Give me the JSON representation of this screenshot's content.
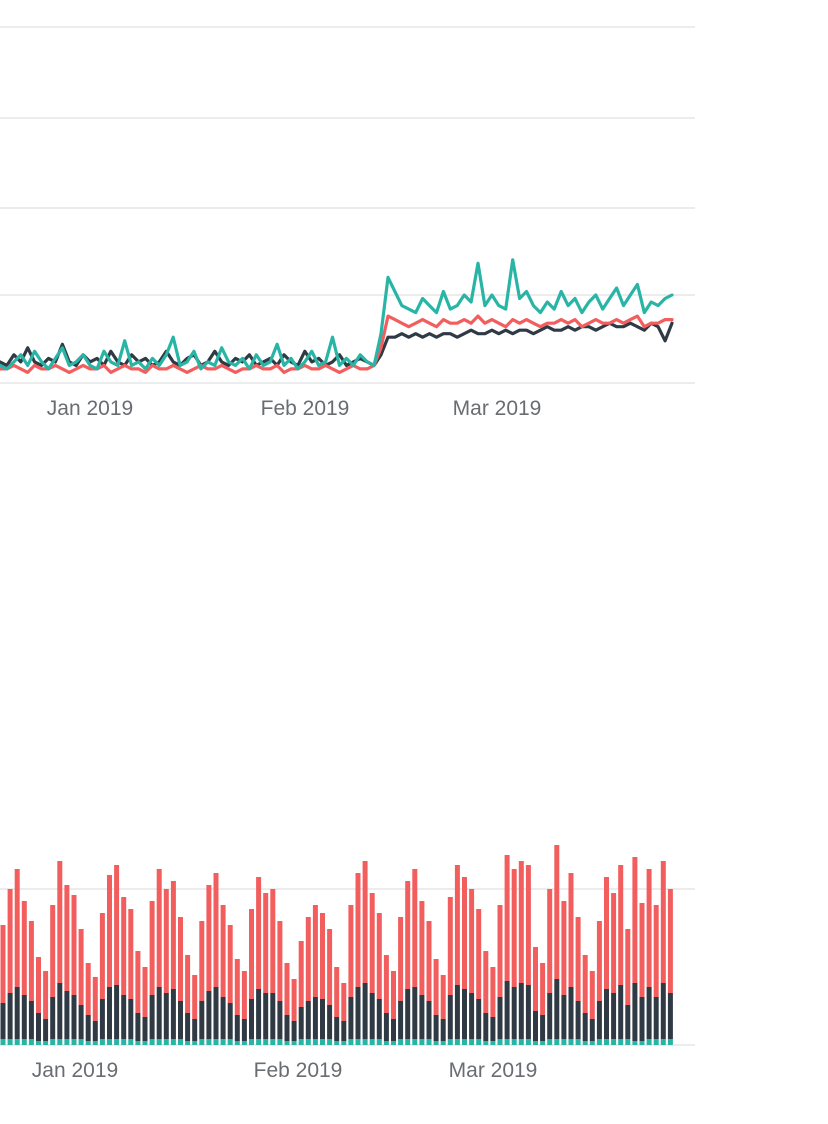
{
  "colors": {
    "teal": "#29b5a5",
    "red": "#f25e5e",
    "navy": "#2f3a45",
    "gridline": "#ececec",
    "axis_label": "#696d71",
    "background": "#ffffff"
  },
  "chart_data": [
    {
      "type": "line",
      "title": "",
      "xlabel": "",
      "ylabel": "",
      "x_tick_labels": [
        "Jan 2019",
        "Feb 2019",
        "Mar 2019"
      ],
      "x_unit": "day",
      "ylim": [
        0,
        100
      ],
      "grid": true,
      "legend": "none",
      "series": [
        {
          "name": "navy-series",
          "color": "#2f3a45",
          "values": [
            6,
            5,
            8,
            6,
            10,
            6,
            5,
            7,
            6,
            11,
            6,
            5,
            8,
            6,
            7,
            5,
            9,
            6,
            5,
            8,
            6,
            7,
            5,
            6,
            9,
            6,
            5,
            7,
            8,
            5,
            6,
            9,
            6,
            5,
            7,
            6,
            8,
            5,
            6,
            7,
            5,
            8,
            6,
            5,
            9,
            6,
            7,
            5,
            6,
            8,
            5,
            6,
            7,
            6,
            5,
            8,
            13,
            13,
            14,
            13,
            14,
            13,
            14,
            13,
            14,
            14,
            13,
            14,
            15,
            14,
            14,
            15,
            14,
            15,
            14,
            15,
            15,
            14,
            15,
            16,
            15,
            15,
            16,
            15,
            16,
            16,
            15,
            16,
            17,
            16,
            16,
            17,
            16,
            15,
            17,
            16,
            12,
            17
          ]
        },
        {
          "name": "red-series",
          "color": "#f25e5e",
          "values": [
            4,
            4,
            5,
            4,
            3,
            5,
            4,
            4,
            5,
            4,
            3,
            4,
            5,
            4,
            4,
            5,
            3,
            4,
            5,
            4,
            4,
            3,
            5,
            4,
            4,
            5,
            4,
            3,
            4,
            5,
            4,
            4,
            5,
            4,
            3,
            4,
            4,
            5,
            4,
            4,
            5,
            3,
            4,
            4,
            5,
            4,
            4,
            5,
            4,
            3,
            4,
            5,
            4,
            4,
            5,
            10,
            19,
            18,
            17,
            16,
            17,
            18,
            17,
            16,
            18,
            17,
            17,
            18,
            17,
            19,
            17,
            18,
            17,
            16,
            18,
            17,
            18,
            17,
            16,
            17,
            17,
            18,
            17,
            18,
            16,
            17,
            18,
            17,
            17,
            18,
            17,
            18,
            19,
            16,
            17,
            17,
            18,
            18
          ]
        },
        {
          "name": "teal-series",
          "color": "#29b5a5",
          "values": [
            5,
            4,
            6,
            8,
            5,
            9,
            6,
            4,
            7,
            10,
            5,
            6,
            8,
            5,
            4,
            9,
            6,
            5,
            12,
            5,
            6,
            4,
            7,
            5,
            8,
            13,
            5,
            6,
            9,
            4,
            6,
            5,
            10,
            6,
            5,
            7,
            4,
            8,
            5,
            6,
            11,
            5,
            7,
            4,
            6,
            9,
            5,
            6,
            13,
            5,
            7,
            5,
            8,
            6,
            5,
            14,
            30,
            26,
            22,
            21,
            20,
            24,
            22,
            20,
            26,
            21,
            22,
            25,
            23,
            34,
            22,
            25,
            22,
            21,
            35,
            24,
            26,
            22,
            20,
            23,
            21,
            26,
            22,
            24,
            20,
            23,
            25,
            21,
            24,
            27,
            22,
            25,
            28,
            20,
            23,
            22,
            24,
            25
          ]
        }
      ]
    },
    {
      "type": "bar",
      "stacked": true,
      "title": "",
      "xlabel": "",
      "ylabel": "",
      "x_tick_labels": [
        "Jan 2019",
        "Feb 2019",
        "Mar 2019"
      ],
      "x_unit": "day",
      "ylim": [
        0,
        105
      ],
      "grid": true,
      "legend": "none",
      "series": [
        {
          "name": "teal-segment",
          "color": "#29b5a5",
          "values": [
            3,
            3,
            3,
            3,
            3,
            2,
            2,
            3,
            3,
            3,
            3,
            3,
            2,
            2,
            3,
            3,
            3,
            3,
            3,
            2,
            2,
            3,
            3,
            3,
            3,
            3,
            2,
            2,
            3,
            3,
            3,
            3,
            3,
            2,
            2,
            3,
            3,
            3,
            3,
            3,
            2,
            2,
            3,
            3,
            3,
            3,
            3,
            2,
            2,
            3,
            3,
            3,
            3,
            3,
            2,
            2,
            3,
            3,
            3,
            3,
            3,
            2,
            2,
            3,
            3,
            3,
            3,
            3,
            2,
            2,
            3,
            3,
            3,
            3,
            3,
            2,
            2,
            3,
            3,
            3,
            3,
            3,
            2,
            2,
            3,
            3,
            3,
            3,
            3,
            2,
            2,
            3,
            3,
            3,
            3
          ]
        },
        {
          "name": "navy-segment",
          "color": "#2f3a45",
          "values": [
            18,
            23,
            26,
            22,
            19,
            14,
            11,
            21,
            28,
            24,
            22,
            17,
            13,
            10,
            20,
            26,
            27,
            22,
            20,
            14,
            12,
            22,
            26,
            23,
            25,
            19,
            14,
            11,
            19,
            24,
            26,
            21,
            18,
            13,
            11,
            20,
            25,
            23,
            23,
            19,
            13,
            10,
            16,
            19,
            21,
            20,
            17,
            12,
            10,
            21,
            26,
            28,
            23,
            20,
            14,
            11,
            19,
            25,
            26,
            22,
            19,
            13,
            11,
            22,
            27,
            25,
            23,
            20,
            14,
            12,
            21,
            29,
            26,
            28,
            27,
            15,
            13,
            23,
            30,
            22,
            26,
            19,
            14,
            11,
            19,
            25,
            23,
            27,
            17,
            29,
            22,
            26,
            21,
            28,
            23
          ]
        },
        {
          "name": "red-segment",
          "color": "#f25e5e",
          "values": [
            39,
            52,
            59,
            47,
            40,
            28,
            24,
            46,
            61,
            53,
            50,
            38,
            26,
            22,
            43,
            56,
            60,
            49,
            45,
            31,
            25,
            47,
            59,
            52,
            54,
            42,
            29,
            22,
            40,
            53,
            57,
            46,
            39,
            28,
            24,
            45,
            56,
            50,
            52,
            40,
            26,
            21,
            33,
            42,
            46,
            43,
            38,
            25,
            19,
            46,
            57,
            61,
            50,
            43,
            29,
            24,
            42,
            54,
            59,
            47,
            40,
            28,
            22,
            49,
            60,
            56,
            52,
            45,
            31,
            25,
            46,
            63,
            59,
            61,
            60,
            32,
            26,
            52,
            67,
            47,
            57,
            42,
            29,
            24,
            40,
            56,
            50,
            60,
            38,
            63,
            47,
            59,
            46,
            61,
            52
          ]
        }
      ]
    }
  ]
}
